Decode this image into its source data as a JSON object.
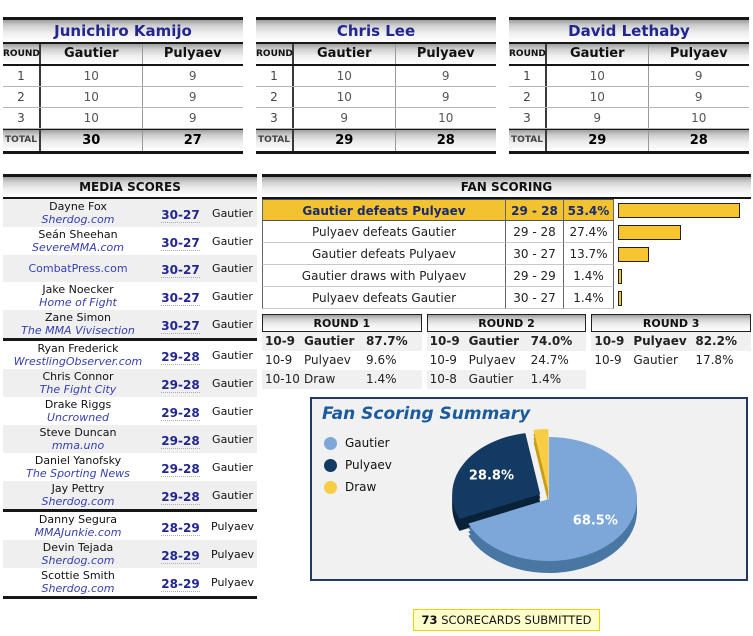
{
  "judge_table": {
    "round_col": "ROUND",
    "total_label": "TOTAL",
    "fighters": [
      "Gautier",
      "Pulyaev"
    ]
  },
  "judges": [
    {
      "name": "Junichiro Kamijo",
      "rounds": [
        [
          "1",
          "10",
          "9"
        ],
        [
          "2",
          "10",
          "9"
        ],
        [
          "3",
          "10",
          "9"
        ]
      ],
      "totals": [
        "30",
        "27"
      ]
    },
    {
      "name": "Chris Lee",
      "rounds": [
        [
          "1",
          "10",
          "9"
        ],
        [
          "2",
          "10",
          "9"
        ],
        [
          "3",
          "9",
          "10"
        ]
      ],
      "totals": [
        "29",
        "28"
      ]
    },
    {
      "name": "David Lethaby",
      "rounds": [
        [
          "1",
          "10",
          "9"
        ],
        [
          "2",
          "10",
          "9"
        ],
        [
          "3",
          "9",
          "10"
        ]
      ],
      "totals": [
        "29",
        "28"
      ]
    }
  ],
  "media": {
    "title": "MEDIA SCORES",
    "groups": [
      [
        {
          "name": "Dayne Fox",
          "outlet": "Sherdog.com",
          "score": "30-27",
          "winner": "Gautier"
        },
        {
          "name": "Seán Sheehan",
          "outlet": "SevereMMA.com",
          "score": "30-27",
          "winner": "Gautier"
        },
        {
          "name": "",
          "outlet": "CombatPress.com",
          "score": "30-27",
          "winner": "Gautier"
        },
        {
          "name": "Jake Noecker",
          "outlet": "Home of Fight",
          "score": "30-27",
          "winner": "Gautier"
        },
        {
          "name": "Zane Simon",
          "outlet": "The MMA Vivisection",
          "score": "30-27",
          "winner": "Gautier"
        }
      ],
      [
        {
          "name": "Ryan Frederick",
          "outlet": "WrestlingObserver.com",
          "score": "29-28",
          "winner": "Gautier"
        },
        {
          "name": "Chris Connor",
          "outlet": "The Fight City",
          "score": "29-28",
          "winner": "Gautier"
        },
        {
          "name": "Drake Riggs",
          "outlet": "Uncrowned",
          "score": "29-28",
          "winner": "Gautier"
        },
        {
          "name": "Steve Duncan",
          "outlet": "mma.uno",
          "score": "29-28",
          "winner": "Gautier"
        },
        {
          "name": "Daniel Yanofsky",
          "outlet": "The Sporting News",
          "score": "29-28",
          "winner": "Gautier"
        },
        {
          "name": "Jay Pettry",
          "outlet": "Sherdog.com",
          "score": "29-28",
          "winner": "Gautier"
        }
      ],
      [
        {
          "name": "Danny Segura",
          "outlet": "MMAJunkie.com",
          "score": "28-29",
          "winner": "Pulyaev"
        },
        {
          "name": "Devin Tejada",
          "outlet": "Sherdog.com",
          "score": "28-29",
          "winner": "Pulyaev"
        },
        {
          "name": "Scottie Smith",
          "outlet": "Sherdog.com",
          "score": "28-29",
          "winner": "Pulyaev"
        }
      ]
    ]
  },
  "fan": {
    "title": "FAN SCORING",
    "max_pct": 53.4,
    "rows": [
      {
        "label": "Gautier defeats Pulyaev",
        "score": "29 - 28",
        "pct": "53.4%",
        "pct_value": 53.4,
        "highlight": true
      },
      {
        "label": "Pulyaev defeats Gautier",
        "score": "29 - 28",
        "pct": "27.4%",
        "pct_value": 27.4,
        "highlight": false
      },
      {
        "label": "Gautier defeats Pulyaev",
        "score": "30 - 27",
        "pct": "13.7%",
        "pct_value": 13.7,
        "highlight": false
      },
      {
        "label": "Gautier draws with Pulyaev",
        "score": "29 - 29",
        "pct": "1.4%",
        "pct_value": 1.4,
        "highlight": false
      },
      {
        "label": "Pulyaev defeats Gautier",
        "score": "30 - 27",
        "pct": "1.4%",
        "pct_value": 1.4,
        "highlight": false
      }
    ]
  },
  "round_tables": [
    {
      "title": "ROUND 1",
      "rows": [
        [
          "10-9",
          "Gautier",
          "87.7%"
        ],
        [
          "10-9",
          "Pulyaev",
          "9.6%"
        ],
        [
          "10-10",
          "Draw",
          "1.4%"
        ]
      ]
    },
    {
      "title": "ROUND 2",
      "rows": [
        [
          "10-9",
          "Gautier",
          "74.0%"
        ],
        [
          "10-9",
          "Pulyaev",
          "24.7%"
        ],
        [
          "10-8",
          "Gautier",
          "1.4%"
        ]
      ]
    },
    {
      "title": "ROUND 3",
      "rows": [
        [
          "10-9",
          "Pulyaev",
          "82.2%"
        ],
        [
          "10-9",
          "Gautier",
          "17.8%"
        ]
      ]
    }
  ],
  "summary": {
    "title": "Fan Scoring Summary"
  },
  "chart_data": {
    "type": "pie",
    "title": "Fan Scoring Summary",
    "legend_position": "left",
    "start_angle_deg": 0,
    "direction": "clockwise",
    "series": [
      {
        "name": "Gautier",
        "value": 68.5,
        "label": "68.5%",
        "show_label": true,
        "color": "#7da7d9",
        "depth_color": "#4a76a4",
        "explode": 0
      },
      {
        "name": "Pulyaev",
        "value": 28.8,
        "label": "28.8%",
        "show_label": true,
        "color": "#123a63",
        "depth_color": "#0a2238",
        "explode": 10
      },
      {
        "name": "Draw",
        "value": 2.7,
        "label": "2.7%",
        "show_label": false,
        "color": "#f7cd45",
        "depth_color": "#c69f18",
        "explode": 8
      }
    ]
  },
  "footer": {
    "count": "73",
    "label": "SCORECARDS SUBMITTED"
  },
  "colors": {
    "accent_gold": "#f2c230",
    "bar_fill": "#f7c52f",
    "navy_text": "#22268f",
    "link_blue": "#3640ad",
    "panel_border": "#1f3864",
    "summary_title": "#1a5a9e",
    "footer_bg": "#ffffcc",
    "footer_border": "#e8d400"
  }
}
